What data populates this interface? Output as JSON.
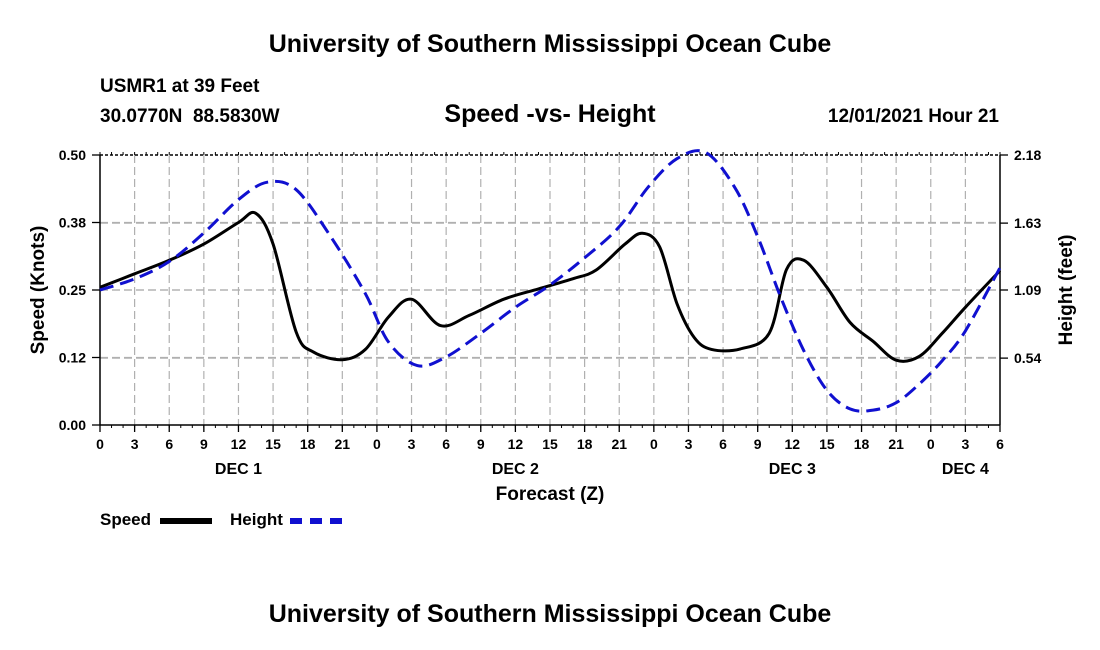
{
  "header": {
    "title": "University of Southern Mississippi Ocean Cube",
    "station": "USMR1 at 39 Feet",
    "coordinates": "30.0770N  88.5830W",
    "subtitle": "Speed -vs- Height",
    "datetime": "12/01/2021 Hour 21"
  },
  "footer": {
    "title": "University of Southern Mississippi Ocean Cube"
  },
  "legend": {
    "speed_label": "Speed",
    "height_label": "Height"
  },
  "colors": {
    "speed": "#000000",
    "height": "#1010d0",
    "grid": "#b0b0b0"
  },
  "chart_data": {
    "type": "line",
    "title": "Speed -vs- Height",
    "xlabel": "Forecast (Z)",
    "ylabel": "Speed (Knots)",
    "y2label": "Height (feet)",
    "x_range_hours": [
      0,
      78
    ],
    "x_tick_labels": [
      "0",
      "3",
      "6",
      "9",
      "12",
      "15",
      "18",
      "21",
      "0",
      "3",
      "6",
      "9",
      "12",
      "15",
      "18",
      "21",
      "0",
      "3",
      "6",
      "9",
      "12",
      "15",
      "18",
      "21",
      "0",
      "3",
      "6"
    ],
    "day_labels": [
      {
        "label": "DEC 1",
        "hour": 12
      },
      {
        "label": "DEC 2",
        "hour": 36
      },
      {
        "label": "DEC 3",
        "hour": 60
      },
      {
        "label": "DEC 4",
        "hour": 75
      }
    ],
    "ylim": [
      0,
      0.5
    ],
    "y_ticks": [
      0.0,
      0.125,
      0.25,
      0.375,
      0.5
    ],
    "y_tick_labels": [
      "0.00",
      "0.12",
      "0.25",
      "0.38",
      "0.50"
    ],
    "y2lim": [
      0,
      2.18
    ],
    "y2_ticks": [
      0.54,
      1.09,
      1.63,
      2.18
    ],
    "y2_tick_labels": [
      "0.54",
      "1.09",
      "1.63",
      "2.18"
    ],
    "series": [
      {
        "name": "Speed",
        "axis": "left",
        "x": [
          0,
          3,
          6,
          9,
          12,
          13.5,
          15,
          17,
          18.5,
          21,
          23,
          25,
          27,
          29.5,
          32,
          35,
          38,
          41,
          43,
          45.5,
          47,
          48.5,
          50,
          51.5,
          53,
          55.5,
          58,
          59.5,
          61,
          63,
          65,
          67,
          69,
          71,
          73,
          75,
          78
        ],
        "values": [
          0.255,
          0.28,
          0.305,
          0.335,
          0.375,
          0.392,
          0.335,
          0.172,
          0.135,
          0.121,
          0.14,
          0.2,
          0.233,
          0.184,
          0.203,
          0.233,
          0.252,
          0.271,
          0.287,
          0.335,
          0.355,
          0.33,
          0.225,
          0.162,
          0.14,
          0.141,
          0.17,
          0.288,
          0.305,
          0.255,
          0.19,
          0.155,
          0.12,
          0.127,
          0.17,
          0.218,
          0.286
        ]
      },
      {
        "name": "Height",
        "axis": "right",
        "x": [
          0,
          3,
          6,
          9,
          12,
          14.5,
          17,
          20,
          23,
          25,
          27.5,
          30,
          33,
          36,
          39,
          42,
          45,
          47.5,
          50,
          52.5,
          55,
          57,
          59,
          61,
          63,
          65,
          67,
          69,
          71,
          73,
          75,
          78
        ],
        "values": [
          1.09,
          1.18,
          1.32,
          1.55,
          1.82,
          1.96,
          1.9,
          1.52,
          1.06,
          0.67,
          0.48,
          0.55,
          0.74,
          0.95,
          1.13,
          1.35,
          1.6,
          1.92,
          2.15,
          2.2,
          1.92,
          1.52,
          1.03,
          0.6,
          0.28,
          0.13,
          0.12,
          0.18,
          0.33,
          0.52,
          0.76,
          1.27
        ]
      }
    ]
  }
}
